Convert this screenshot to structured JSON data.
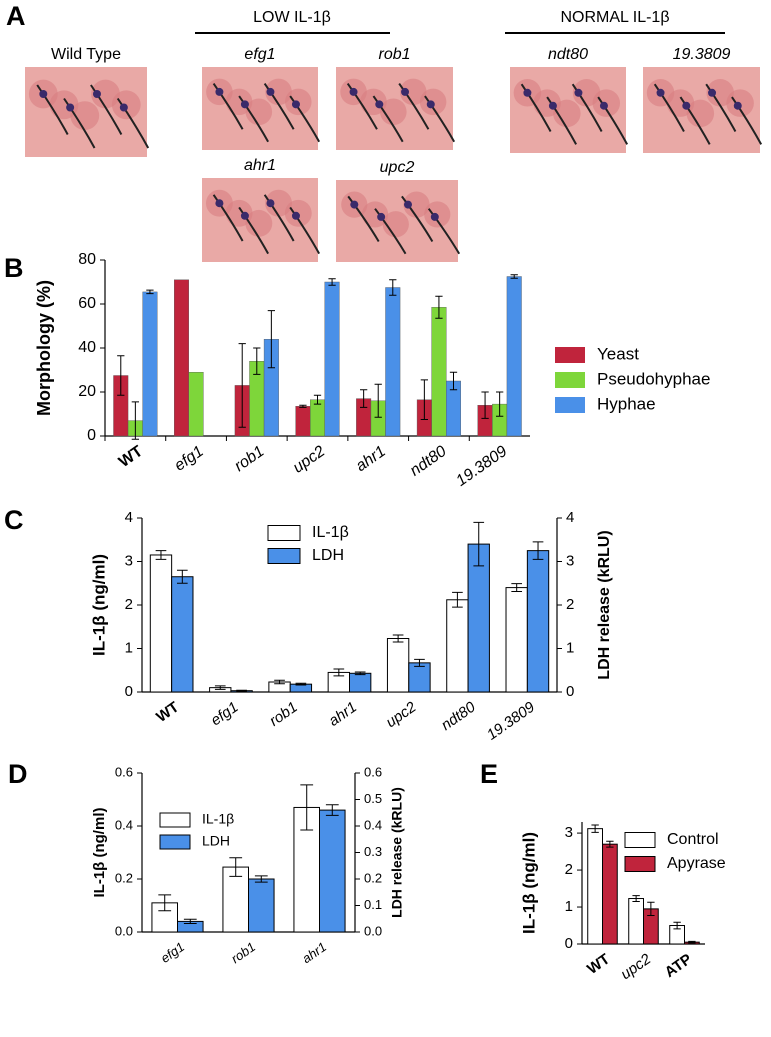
{
  "figure_a": {
    "panel": "A",
    "groups": [
      "LOW IL-1β",
      "NORMAL IL-1β"
    ],
    "images": [
      "Wild Type",
      "efg1",
      "rob1",
      "ndt80",
      "19.3809",
      "ahr1",
      "upc2"
    ]
  },
  "chart_data": [
    {
      "panel": "B",
      "type": "bar",
      "y_label": "Morphology (%)",
      "categories": [
        "WT",
        "efg1",
        "rob1",
        "upc2",
        "ahr1",
        "ndt80",
        "19.3809"
      ],
      "series": [
        {
          "name": "Yeast",
          "color": "#c0243c",
          "values": [
            27.5,
            71,
            23,
            13.5,
            17,
            16.5,
            14
          ],
          "errors": [
            9,
            null,
            19,
            0.5,
            4,
            9,
            6
          ]
        },
        {
          "name": "Pseudohyphae",
          "color": "#7ed63a",
          "values": [
            7,
            29,
            34,
            16.5,
            16,
            58.5,
            14.5
          ],
          "errors": [
            8.5,
            null,
            6,
            2,
            7.5,
            5,
            5.5
          ]
        },
        {
          "name": "Hyphae",
          "color": "#4a90e8",
          "values": [
            65.5,
            0,
            44,
            70,
            67.5,
            25,
            72.5
          ],
          "errors": [
            0.8,
            null,
            13,
            1.5,
            3.5,
            4,
            0.8
          ]
        }
      ],
      "ylim": [
        0,
        80
      ],
      "yticks": [
        0,
        20,
        40,
        60,
        80
      ]
    },
    {
      "panel": "C",
      "type": "bar",
      "y_label": "IL-1β (ng/ml)",
      "y2_label": "LDH release (kRLU)",
      "categories": [
        "WT",
        "efg1",
        "rob1",
        "ahr1",
        "upc2",
        "ndt80",
        "19.3809"
      ],
      "series": [
        {
          "name": "IL-1β",
          "color": "#ffffff",
          "values": [
            3.15,
            0.1,
            0.23,
            0.45,
            1.23,
            2.12,
            2.4
          ],
          "errors": [
            0.1,
            0.04,
            0.04,
            0.08,
            0.08,
            0.17,
            0.09
          ]
        },
        {
          "name": "LDH",
          "color": "#4a90e8",
          "axis": "y2",
          "values": [
            2.65,
            0.03,
            0.18,
            0.43,
            0.67,
            3.4,
            3.25
          ],
          "errors": [
            0.15,
            0.01,
            0.02,
            0.03,
            0.08,
            0.5,
            0.2
          ]
        }
      ],
      "ylim": [
        0,
        4
      ],
      "yticks": [
        0,
        1,
        2,
        3,
        4
      ],
      "y2lim": [
        0,
        4
      ],
      "y2ticks": [
        0,
        1,
        2,
        3,
        4
      ]
    },
    {
      "panel": "D",
      "type": "bar",
      "y_label": "IL-1β (ng/ml)",
      "y2_label": "LDH release (kRLU)",
      "categories": [
        "efg1",
        "rob1",
        "ahr1"
      ],
      "series": [
        {
          "name": "IL-1β",
          "color": "#ffffff",
          "values": [
            0.11,
            0.245,
            0.47
          ],
          "errors": [
            0.03,
            0.035,
            0.085
          ]
        },
        {
          "name": "LDH",
          "color": "#4a90e8",
          "axis": "y2",
          "values": [
            0.04,
            0.2,
            0.46
          ],
          "errors": [
            0.008,
            0.012,
            0.02
          ]
        }
      ],
      "ylim": [
        0,
        0.6
      ],
      "yticks": [
        {
          "value": 0,
          "label": "0.0"
        },
        0.2,
        0.4,
        0.6
      ],
      "y2lim": [
        0,
        0.6
      ],
      "y2ticks": [
        {
          "value": 0,
          "label": "0.0"
        },
        0.1,
        0.2,
        0.3,
        0.4,
        0.5,
        0.6
      ]
    },
    {
      "panel": "E",
      "type": "bar",
      "y_label": "IL-1β (ng/ml)",
      "categories": [
        "WT",
        "upc2",
        "ATP"
      ],
      "series": [
        {
          "name": "Control",
          "color": "#ffffff",
          "values": [
            3.12,
            1.23,
            0.5
          ],
          "errors": [
            0.1,
            0.08,
            0.09
          ]
        },
        {
          "name": "Apyrase",
          "color": "#c0243c",
          "values": [
            2.7,
            0.95,
            0.05
          ],
          "errors": [
            0.08,
            0.18,
            0.02
          ]
        }
      ],
      "ylim": [
        0,
        3.3
      ],
      "yticks": [
        0,
        1,
        2,
        3
      ]
    }
  ]
}
